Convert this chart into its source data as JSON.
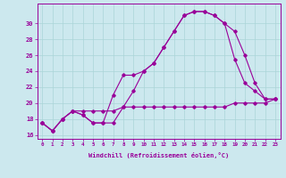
{
  "xlabel": "Windchill (Refroidissement éolien,°C)",
  "background_color": "#cce8ee",
  "line_color": "#990099",
  "grid_color": "#aad4d8",
  "xlim": [
    -0.5,
    23.5
  ],
  "ylim": [
    15.5,
    32.5
  ],
  "xticks": [
    0,
    1,
    2,
    3,
    4,
    5,
    6,
    7,
    8,
    9,
    10,
    11,
    12,
    13,
    14,
    15,
    16,
    17,
    18,
    19,
    20,
    21,
    22,
    23
  ],
  "yticks": [
    16,
    18,
    20,
    22,
    24,
    26,
    28,
    30
  ],
  "line1_x": [
    0,
    1,
    2,
    3,
    4,
    5,
    6,
    7,
    8,
    9,
    10,
    11,
    12,
    13,
    14,
    15,
    16,
    17,
    18,
    19,
    20,
    21,
    22,
    23
  ],
  "line1_y": [
    17.5,
    16.5,
    18.0,
    19.0,
    18.5,
    17.5,
    17.5,
    17.5,
    19.5,
    21.5,
    24.0,
    25.0,
    27.0,
    29.0,
    31.0,
    31.5,
    31.5,
    31.0,
    30.0,
    25.5,
    22.5,
    21.5,
    20.5,
    20.5
  ],
  "line2_x": [
    0,
    1,
    2,
    3,
    4,
    5,
    6,
    7,
    8,
    9,
    10,
    11,
    12,
    13,
    14,
    15,
    16,
    17,
    18,
    19,
    20,
    21,
    22,
    23
  ],
  "line2_y": [
    17.5,
    16.5,
    18.0,
    19.0,
    18.5,
    17.5,
    17.5,
    21.0,
    23.5,
    23.5,
    24.0,
    25.0,
    27.0,
    29.0,
    31.0,
    31.5,
    31.5,
    31.0,
    30.0,
    29.0,
    26.0,
    22.5,
    20.5,
    20.5
  ],
  "line3_x": [
    0,
    1,
    2,
    3,
    4,
    5,
    6,
    7,
    8,
    9,
    10,
    11,
    12,
    13,
    14,
    15,
    16,
    17,
    18,
    19,
    20,
    21,
    22,
    23
  ],
  "line3_y": [
    17.5,
    16.5,
    18.0,
    19.0,
    19.0,
    19.0,
    19.0,
    19.0,
    19.5,
    19.5,
    19.5,
    19.5,
    19.5,
    19.5,
    19.5,
    19.5,
    19.5,
    19.5,
    19.5,
    20.0,
    20.0,
    20.0,
    20.0,
    20.5
  ]
}
